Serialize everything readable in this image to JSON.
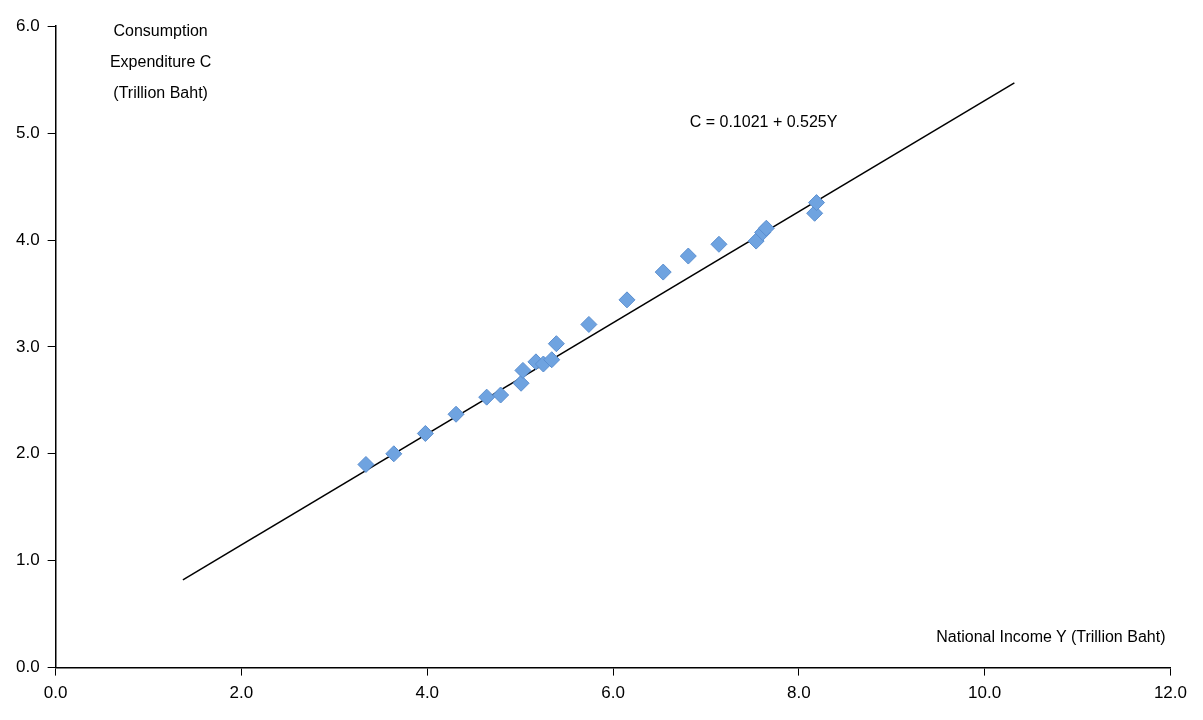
{
  "chart_data": {
    "type": "scatter",
    "xlabel": "National Income Y (Trillion Baht)",
    "ylabel": "Consumption\nExpenditure C\n(Trillion Baht)",
    "annotations": [
      "C = 0.1021 + 0.525Y"
    ],
    "series": [
      {
        "color": "#6fa3e0",
        "marker": "diamond",
        "x": [
          3.34,
          3.64,
          3.98,
          4.31,
          4.64,
          4.79,
          5.01,
          5.03,
          5.17,
          5.25,
          5.34,
          5.39,
          5.74,
          6.15,
          6.54,
          6.81,
          7.14,
          7.54,
          7.61,
          7.65,
          8.17,
          8.19
        ],
        "values": [
          1.9,
          2.0,
          2.19,
          2.37,
          2.53,
          2.55,
          2.66,
          2.78,
          2.86,
          2.84,
          2.88,
          3.03,
          3.21,
          3.44,
          3.7,
          3.85,
          3.96,
          3.99,
          4.07,
          4.11,
          4.25,
          4.35
        ]
      },
      {
        "type": "line",
        "color": "#000000",
        "marker": "none",
        "line_style": "solid",
        "x": [
          1.37,
          10.32
        ],
        "values": [
          0.82,
          5.47
        ]
      }
    ],
    "xlim": [
      0,
      12
    ],
    "ylim": [
      0,
      6
    ],
    "xticks": [
      {
        "value": 0,
        "label": "0.0"
      },
      {
        "value": 2,
        "label": "2.0"
      },
      {
        "value": 4,
        "label": "4.0"
      },
      {
        "value": 6,
        "label": "6.0"
      },
      {
        "value": 8,
        "label": "8.0"
      },
      {
        "value": 10,
        "label": "10.0"
      },
      {
        "value": 12,
        "label": "12.0"
      }
    ],
    "yticks": [
      {
        "value": 0,
        "label": "0.0"
      },
      {
        "value": 1,
        "label": "1.0"
      },
      {
        "value": 2,
        "label": "2.0"
      },
      {
        "value": 3,
        "label": "3.0"
      },
      {
        "value": 4,
        "label": "4.0"
      },
      {
        "value": 5,
        "label": "5.0"
      },
      {
        "value": 6,
        "label": "6.0"
      }
    ],
    "grid": false,
    "legend": false
  }
}
